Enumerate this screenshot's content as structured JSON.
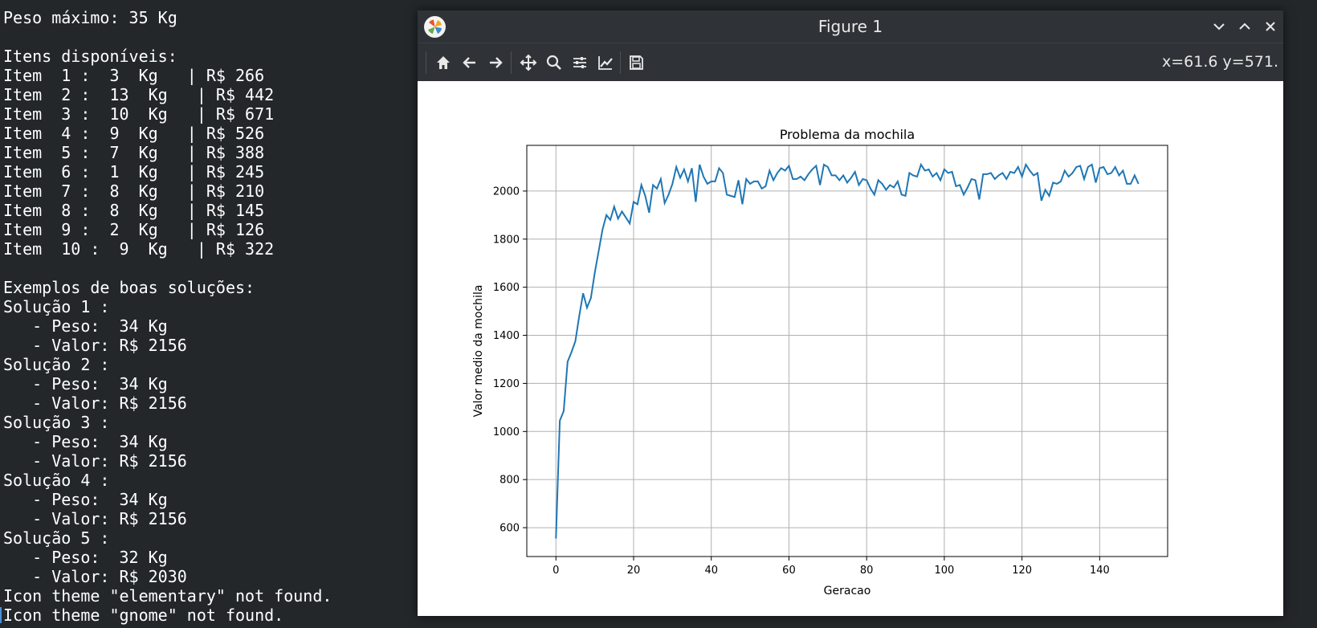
{
  "terminal": {
    "lines": [
      "Peso máximo: 35 Kg",
      "",
      "Itens disponíveis:",
      "Item  1 :  3  Kg   | R$ 266",
      "Item  2 :  13  Kg   | R$ 442",
      "Item  3 :  10  Kg   | R$ 671",
      "Item  4 :  9  Kg   | R$ 526",
      "Item  5 :  7  Kg   | R$ 388",
      "Item  6 :  1  Kg   | R$ 245",
      "Item  7 :  8  Kg   | R$ 210",
      "Item  8 :  8  Kg   | R$ 145",
      "Item  9 :  2  Kg   | R$ 126",
      "Item  10 :  9  Kg   | R$ 322",
      "",
      "Exemplos de boas soluções:",
      "Solução 1 :",
      "   - Peso:  34 Kg",
      "   - Valor: R$ 2156",
      "Solução 2 :",
      "   - Peso:  34 Kg",
      "   - Valor: R$ 2156",
      "Solução 3 :",
      "   - Peso:  34 Kg",
      "   - Valor: R$ 2156",
      "Solução 4 :",
      "   - Peso:  34 Kg",
      "   - Valor: R$ 2156",
      "Solução 5 :",
      "   - Peso:  32 Kg",
      "   - Valor: R$ 2030",
      "Icon theme \"elementary\" not found.",
      "Icon theme \"gnome\" not found."
    ]
  },
  "window": {
    "title": "Figure 1",
    "coord_readout": "x=61.6 y=571.",
    "toolbar_icons": [
      "home-icon",
      "back-arrow-icon",
      "forward-arrow-icon",
      "pan-icon",
      "zoom-icon",
      "subplots-config-icon",
      "axes-edit-icon",
      "save-icon"
    ],
    "controls": [
      "minimize-icon",
      "maximize-icon",
      "close-icon"
    ]
  },
  "colors": {
    "terminal_bg": "#23272a",
    "titlebar_bg": "#2f3337",
    "line": "#1f77b4",
    "grid": "#b0b0b0"
  },
  "chart_data": {
    "type": "line",
    "title": "Problema da mochila",
    "xlabel": "Geracao",
    "ylabel": "Valor medio da mochila",
    "xlim": [
      -7.5,
      157.5
    ],
    "ylim": [
      480,
      2190
    ],
    "xticks": [
      0,
      20,
      40,
      60,
      80,
      100,
      120,
      140
    ],
    "yticks": [
      600,
      800,
      1000,
      1200,
      1400,
      1600,
      1800,
      2000
    ],
    "grid": true,
    "series": [
      {
        "values": [
          555,
          1045,
          1085,
          1290,
          1330,
          1375,
          1480,
          1575,
          1515,
          1555,
          1660,
          1750,
          1840,
          1900,
          1880,
          1935,
          1885,
          1915,
          1890,
          1865,
          1955,
          1945,
          2025,
          1980,
          1910,
          2025,
          2010,
          2050,
          1950,
          1985,
          2030,
          2100,
          2055,
          2090,
          2040,
          2095,
          1955,
          2110,
          2060,
          2030,
          2040,
          2040,
          2095,
          2075,
          1985,
          1980,
          1975,
          2045,
          1945,
          2050,
          2030,
          2040,
          2040,
          2010,
          2020,
          2085,
          2045,
          2075,
          2095,
          2085,
          2105,
          2050,
          2050,
          2060,
          2045,
          2070,
          2090,
          2105,
          2025,
          2110,
          2100,
          2065,
          2065,
          2045,
          2065,
          2035,
          2055,
          2080,
          2025,
          2050,
          2045,
          2010,
          1985,
          2045,
          2030,
          2005,
          2025,
          2015,
          2040,
          1985,
          1980,
          2075,
          2065,
          2060,
          2110,
          2085,
          2090,
          2060,
          2075,
          2045,
          2090,
          2075,
          2080,
          2020,
          2025,
          1985,
          2015,
          2050,
          2045,
          1965,
          2070,
          2070,
          2075,
          2050,
          2065,
          2075,
          2050,
          2080,
          2075,
          2100,
          2060,
          2110,
          2085,
          2065,
          2075,
          1960,
          2005,
          1980,
          2035,
          2030,
          2040,
          2085,
          2060,
          2075,
          2100,
          2105,
          2050,
          2100,
          2110,
          2035,
          2095,
          2100,
          2070,
          2075,
          2100,
          2065,
          2085,
          2030,
          2030,
          2065,
          2030
        ]
      }
    ]
  }
}
